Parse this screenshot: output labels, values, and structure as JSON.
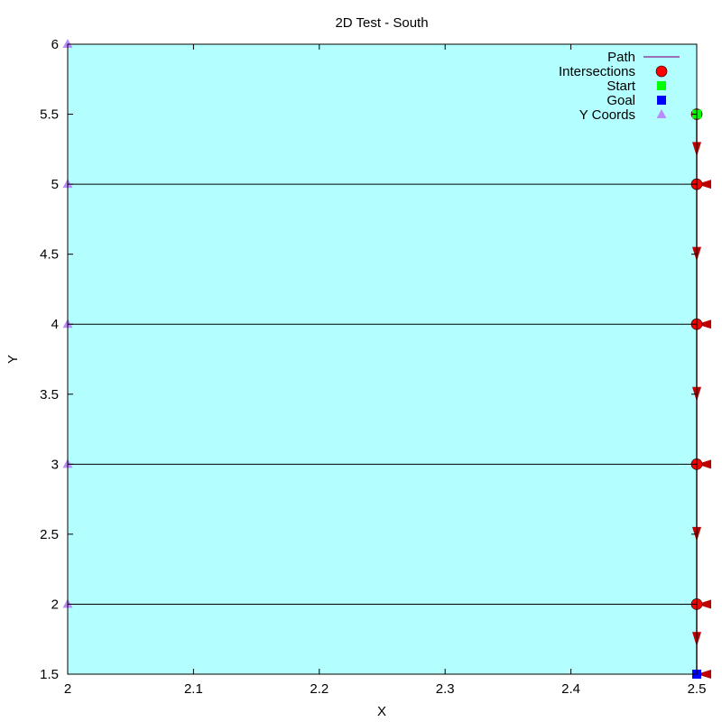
{
  "chart_data": {
    "type": "line",
    "title": "2D Test - South",
    "xlabel": "X",
    "ylabel": "Y",
    "xlim": [
      2,
      2.5
    ],
    "ylim": [
      1.5,
      6
    ],
    "xticks": [
      2,
      2.1,
      2.2,
      2.3,
      2.4,
      2.5
    ],
    "xtick_labels": [
      "2",
      "2.1",
      "2.2",
      "2.3",
      "2.4",
      "2.5"
    ],
    "yticks": [
      1.5,
      2,
      2.5,
      3,
      3.5,
      4,
      4.5,
      5,
      5.5,
      6
    ],
    "ytick_labels": [
      "1.5",
      "2",
      "2.5",
      "3",
      "3.5",
      "4",
      "4.5",
      "5",
      "5.5",
      "6"
    ],
    "grid": false,
    "legend_position": "top-right",
    "background_color": "#b3ffff",
    "horizontal_lines_y": [
      2,
      3,
      4,
      5
    ],
    "series": [
      {
        "name": "Path",
        "kind": "arrows",
        "color": "#c00000",
        "points": [
          {
            "x": 2.5,
            "y": 5.5
          },
          {
            "x": 2.5,
            "y": 5
          },
          {
            "x": 2.5,
            "y": 4
          },
          {
            "x": 2.5,
            "y": 3
          },
          {
            "x": 2.5,
            "y": 2
          },
          {
            "x": 2.5,
            "y": 1.5
          }
        ]
      },
      {
        "name": "Intersections",
        "kind": "circle",
        "color": "#ff0000",
        "points": [
          {
            "x": 2.5,
            "y": 5.5
          },
          {
            "x": 2.5,
            "y": 5
          },
          {
            "x": 2.5,
            "y": 4
          },
          {
            "x": 2.5,
            "y": 3
          },
          {
            "x": 2.5,
            "y": 2
          }
        ]
      },
      {
        "name": "Start",
        "kind": "square",
        "color": "#00ff00",
        "points": [
          {
            "x": 2.5,
            "y": 5.5
          }
        ]
      },
      {
        "name": "Goal",
        "kind": "square",
        "color": "#0000ff",
        "points": [
          {
            "x": 2.5,
            "y": 1.5
          }
        ]
      },
      {
        "name": "Y Coords",
        "kind": "triangle",
        "color": "#b98cff",
        "points": [
          {
            "x": 2,
            "y": 6
          },
          {
            "x": 2,
            "y": 5
          },
          {
            "x": 2,
            "y": 4
          },
          {
            "x": 2,
            "y": 3
          },
          {
            "x": 2,
            "y": 2
          }
        ]
      }
    ]
  }
}
